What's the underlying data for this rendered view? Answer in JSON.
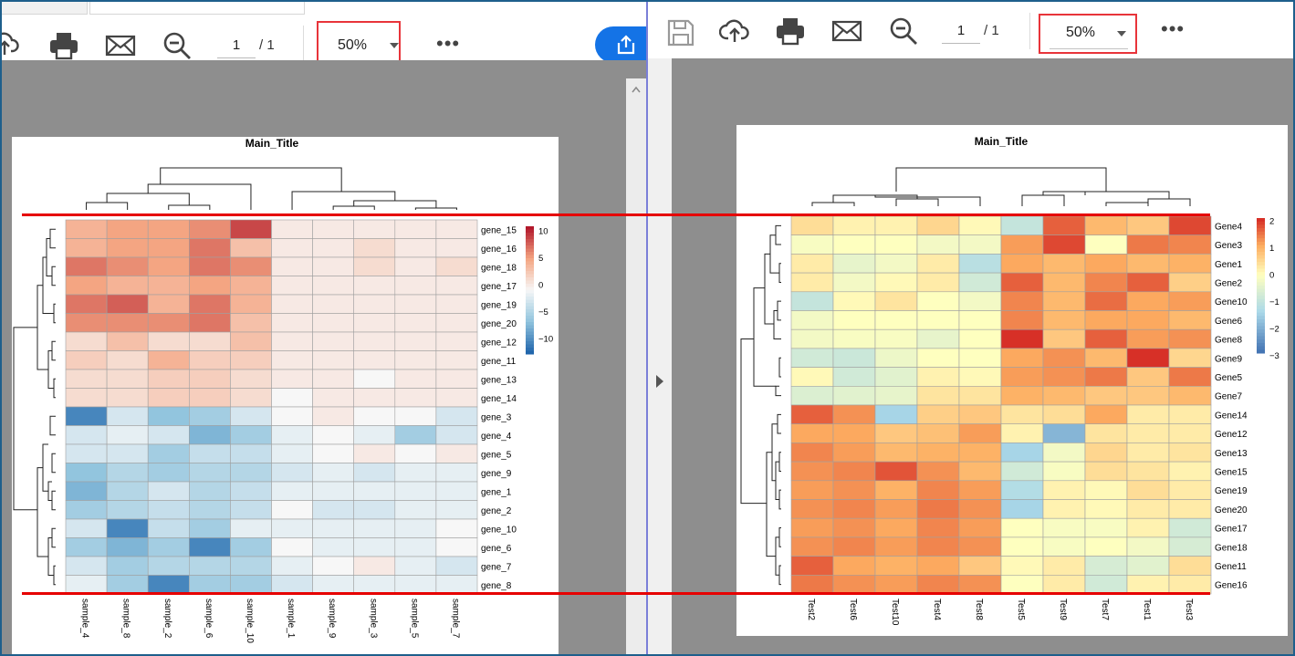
{
  "left_viewer": {
    "toolbar": {
      "page_current": "1",
      "page_total": "/ 1",
      "zoom": "50%",
      "more_label": "•••",
      "icons": [
        "upload-cloud-icon",
        "print-icon",
        "mail-icon",
        "zoom-out-icon",
        "share-icon"
      ]
    }
  },
  "right_viewer": {
    "toolbar": {
      "page_current": "1",
      "page_total": "/ 1",
      "zoom": "50%",
      "more_label": "•••",
      "icons": [
        "save-icon",
        "upload-cloud-icon",
        "print-icon",
        "mail-icon",
        "zoom-out-icon"
      ]
    }
  },
  "colors": {
    "accent": "#1473e6",
    "highlight": "#e8343a",
    "redline": "#e60000"
  },
  "chart_data": [
    {
      "type": "heatmap",
      "title": "Main_Title",
      "columns": [
        "sample_4",
        "sample_8",
        "sample_2",
        "sample_6",
        "sample_10",
        "sample_1",
        "sample_9",
        "sample_3",
        "sample_5",
        "sample_7"
      ],
      "rows": [
        "gene_15",
        "gene_16",
        "gene_18",
        "gene_17",
        "gene_19",
        "gene_20",
        "gene_12",
        "gene_11",
        "gene_13",
        "gene_14",
        "gene_3",
        "gene_4",
        "gene_5",
        "gene_9",
        "gene_1",
        "gene_2",
        "gene_10",
        "gene_6",
        "gene_7",
        "gene_8"
      ],
      "values": [
        [
          5,
          6,
          6,
          7,
          10,
          1,
          1,
          1,
          1,
          1
        ],
        [
          5,
          6,
          6,
          8,
          4,
          1,
          1,
          2,
          1,
          1
        ],
        [
          8,
          7,
          6,
          8,
          7,
          1,
          1,
          2,
          1,
          2
        ],
        [
          6,
          5,
          5,
          6,
          5,
          1,
          1,
          1,
          1,
          1
        ],
        [
          8,
          9,
          5,
          8,
          5,
          1,
          1,
          1,
          1,
          1
        ],
        [
          7,
          7,
          7,
          8,
          4,
          1,
          1,
          1,
          1,
          1
        ],
        [
          2,
          4,
          2,
          2,
          4,
          1,
          1,
          1,
          1,
          1
        ],
        [
          3,
          2,
          5,
          3,
          3,
          1,
          1,
          1,
          1,
          1
        ],
        [
          2,
          2,
          3,
          3,
          2,
          1,
          1,
          0,
          1,
          1
        ],
        [
          2,
          2,
          3,
          3,
          2,
          0,
          1,
          1,
          1,
          1
        ],
        [
          -10,
          -2,
          -6,
          -5,
          -2,
          0,
          1,
          0,
          0,
          -2
        ],
        [
          -2,
          -1,
          -2,
          -7,
          -5,
          -1,
          0,
          -1,
          -5,
          -2
        ],
        [
          -2,
          -2,
          -5,
          -3,
          -3,
          -1,
          0,
          1,
          0,
          1
        ],
        [
          -6,
          -4,
          -5,
          -4,
          -4,
          -2,
          -1,
          -2,
          -1,
          -1
        ],
        [
          -7,
          -4,
          -2,
          -4,
          -3,
          -1,
          -1,
          -1,
          -1,
          -1
        ],
        [
          -5,
          -4,
          -3,
          -4,
          -3,
          0,
          -2,
          -2,
          -1,
          -1
        ],
        [
          -2,
          -10,
          -3,
          -5,
          -1,
          -1,
          -1,
          -1,
          -1,
          0
        ],
        [
          -5,
          -7,
          -5,
          -10,
          -5,
          0,
          -1,
          -1,
          -1,
          0
        ],
        [
          -2,
          -5,
          -4,
          -4,
          -4,
          -1,
          0,
          1,
          -1,
          -2
        ],
        [
          -1,
          -5,
          -10,
          -5,
          -5,
          -2,
          -1,
          -1,
          -1,
          -1
        ]
      ],
      "legend_ticks": [
        "10",
        "5",
        "0",
        "−5",
        "−10"
      ],
      "vmin": -12,
      "vmax": 12
    },
    {
      "type": "heatmap",
      "title": "Main_Title",
      "columns": [
        "Test2",
        "Test6",
        "Test10",
        "Test4",
        "Test8",
        "Test5",
        "Test9",
        "Test7",
        "Test1",
        "Test3"
      ],
      "rows": [
        "Gene4",
        "Gene3",
        "Gene1",
        "Gene2",
        "Gene10",
        "Gene6",
        "Gene8",
        "Gene9",
        "Gene5",
        "Gene7",
        "Gene14",
        "Gene12",
        "Gene13",
        "Gene15",
        "Gene19",
        "Gene20",
        "Gene17",
        "Gene18",
        "Gene11",
        "Gene16"
      ],
      "values": [
        [
          0.5,
          0.2,
          0.2,
          0.6,
          0.1,
          -1.0,
          1.8,
          1.0,
          0.8,
          2.0
        ],
        [
          -0.1,
          0.0,
          0.0,
          -0.2,
          -0.2,
          1.3,
          2.0,
          0.0,
          1.6,
          1.5
        ],
        [
          0.3,
          -0.4,
          -0.2,
          0.3,
          -1.2,
          1.2,
          1.0,
          1.2,
          1.0,
          1.1
        ],
        [
          0.3,
          -0.2,
          0.1,
          0.3,
          -0.8,
          1.8,
          1.0,
          1.5,
          1.8,
          0.7
        ],
        [
          -1.0,
          0.1,
          0.4,
          0.0,
          -0.2,
          1.5,
          1.0,
          1.7,
          1.2,
          1.3
        ],
        [
          -0.2,
          0.0,
          0.0,
          0.0,
          0.0,
          1.5,
          1.0,
          1.2,
          1.2,
          1.0
        ],
        [
          -0.2,
          -0.1,
          -0.1,
          -0.4,
          0.0,
          2.2,
          0.8,
          1.8,
          1.3,
          1.4
        ],
        [
          -0.8,
          -0.9,
          -0.3,
          0.0,
          0.0,
          1.2,
          1.4,
          1.0,
          2.2,
          0.6
        ],
        [
          0.1,
          -0.8,
          -0.5,
          0.2,
          0.1,
          1.3,
          1.4,
          1.6,
          0.8,
          1.6
        ],
        [
          -0.6,
          -0.5,
          -0.4,
          0.4,
          0.4,
          1.1,
          1.0,
          0.8,
          0.8,
          1.0
        ],
        [
          1.8,
          1.4,
          -1.5,
          0.7,
          0.8,
          0.4,
          0.5,
          1.2,
          0.3,
          0.3
        ],
        [
          1.2,
          1.2,
          0.8,
          0.9,
          1.3,
          0.2,
          -2.0,
          0.4,
          0.3,
          0.3
        ],
        [
          1.5,
          1.3,
          1.0,
          1.1,
          1.1,
          -1.5,
          -0.2,
          0.6,
          0.3,
          0.4
        ],
        [
          1.4,
          1.5,
          1.9,
          1.4,
          1.0,
          -0.8,
          -0.1,
          0.5,
          0.4,
          0.2
        ],
        [
          1.3,
          1.4,
          1.1,
          1.5,
          1.3,
          -1.3,
          0.2,
          0.1,
          0.5,
          0.3
        ],
        [
          1.4,
          1.5,
          1.3,
          1.6,
          1.4,
          -1.5,
          0.2,
          0.1,
          0.3,
          0.3
        ],
        [
          1.3,
          1.4,
          1.2,
          1.5,
          1.3,
          0.0,
          -0.1,
          -0.1,
          0.2,
          -0.8
        ],
        [
          1.4,
          1.5,
          1.3,
          1.5,
          1.4,
          0.0,
          -0.1,
          0.0,
          -0.2,
          -0.7
        ],
        [
          1.8,
          1.2,
          1.1,
          1.2,
          0.8,
          0.1,
          0.3,
          -0.7,
          -0.5,
          0.5
        ],
        [
          1.6,
          1.4,
          1.3,
          1.5,
          1.4,
          0.0,
          0.3,
          -0.8,
          0.2,
          0.3
        ]
      ],
      "legend_ticks": [
        "2",
        "1",
        "0",
        "−1",
        "−2",
        "−3"
      ],
      "vmin": -3,
      "vmax": 2.2
    }
  ]
}
